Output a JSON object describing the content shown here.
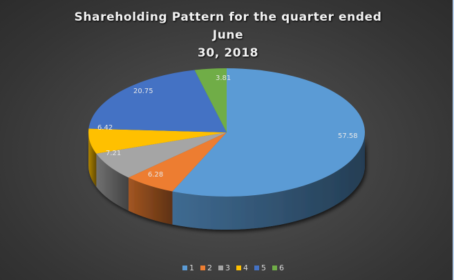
{
  "chart_data": {
    "type": "pie",
    "style": "3d-pie",
    "title": "Shareholding Pattern for the quarter ended June 30, 2018",
    "title_lines": [
      "Shareholding Pattern for the quarter ended June",
      "30, 2018"
    ],
    "categories": [
      "1",
      "2",
      "3",
      "4",
      "5",
      "6"
    ],
    "values": [
      57.58,
      6.28,
      7.21,
      6.42,
      20.75,
      3.81
    ],
    "data_labels": [
      "57.58",
      "6.28",
      "7.21",
      "6.42",
      "20.75",
      "3.81"
    ],
    "colors": [
      "#5b9bd5",
      "#ed7d31",
      "#a5a5a5",
      "#ffc000",
      "#4472c4",
      "#70ad47"
    ],
    "legend_position": "bottom",
    "xlabel": "",
    "ylabel": ""
  },
  "legend": {
    "items": [
      {
        "label": "1",
        "color": "#5b9bd5"
      },
      {
        "label": "2",
        "color": "#ed7d31"
      },
      {
        "label": "3",
        "color": "#a5a5a5"
      },
      {
        "label": "4",
        "color": "#ffc000"
      },
      {
        "label": "5",
        "color": "#4472c4"
      },
      {
        "label": "6",
        "color": "#70ad47"
      }
    ]
  }
}
